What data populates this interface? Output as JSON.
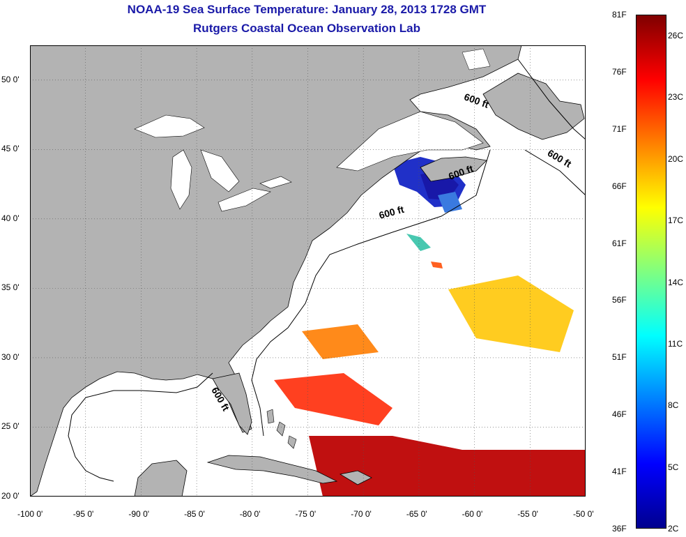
{
  "title": {
    "line1": "NOAA-19 Sea Surface Temperature:  January 28, 2013 1728 GMT",
    "line2": "Rutgers Coastal Ocean Observation Lab"
  },
  "map": {
    "lon_range": [
      -100,
      -50
    ],
    "lat_range": [
      20,
      52.5
    ],
    "lon_ticks": [
      "-100 0'",
      "-95 0'",
      "-90 0'",
      "-85 0'",
      "-80 0'",
      "-75 0'",
      "-70 0'",
      "-65 0'",
      "-60 0'",
      "-55 0'",
      "-50 0'"
    ],
    "lat_ticks": [
      {
        "lat": 50,
        "label": "50 0'"
      },
      {
        "lat": 45,
        "label": "45 0'"
      },
      {
        "lat": 40,
        "label": "40 0'"
      },
      {
        "lat": 35,
        "label": "35 0'"
      },
      {
        "lat": 30,
        "label": "30 0'"
      },
      {
        "lat": 25,
        "label": "25 0'"
      },
      {
        "lat": 20,
        "label": "20 0'"
      }
    ],
    "land_color": "#b3b3b3",
    "ocean_color": "#ffffff",
    "grid": "dotted",
    "contour_labels": [
      {
        "text": "600 ft",
        "lon": -61,
        "lat": 48.6
      },
      {
        "text": "600 ft",
        "lon": -53.5,
        "lat": 44.6
      },
      {
        "text": "600 ft",
        "lon": -62.2,
        "lat": 42.8
      },
      {
        "text": "600 ft",
        "lon": -68.5,
        "lat": 40.0
      },
      {
        "text": "600 ft",
        "lon": -83.7,
        "lat": 27.7
      }
    ]
  },
  "colorbar": {
    "f_labels": [
      "81F",
      "76F",
      "71F",
      "66F",
      "61F",
      "56F",
      "51F",
      "46F",
      "41F",
      "36F"
    ],
    "c_labels": [
      "26C",
      "23C",
      "20C",
      "17C",
      "14C",
      "11C",
      "8C",
      "5C",
      "2C"
    ],
    "colors": [
      "#7f0000",
      "#ff0000",
      "#ff8000",
      "#ffff00",
      "#80ff80",
      "#00ffff",
      "#0080ff",
      "#0000ff",
      "#00008f"
    ]
  }
}
